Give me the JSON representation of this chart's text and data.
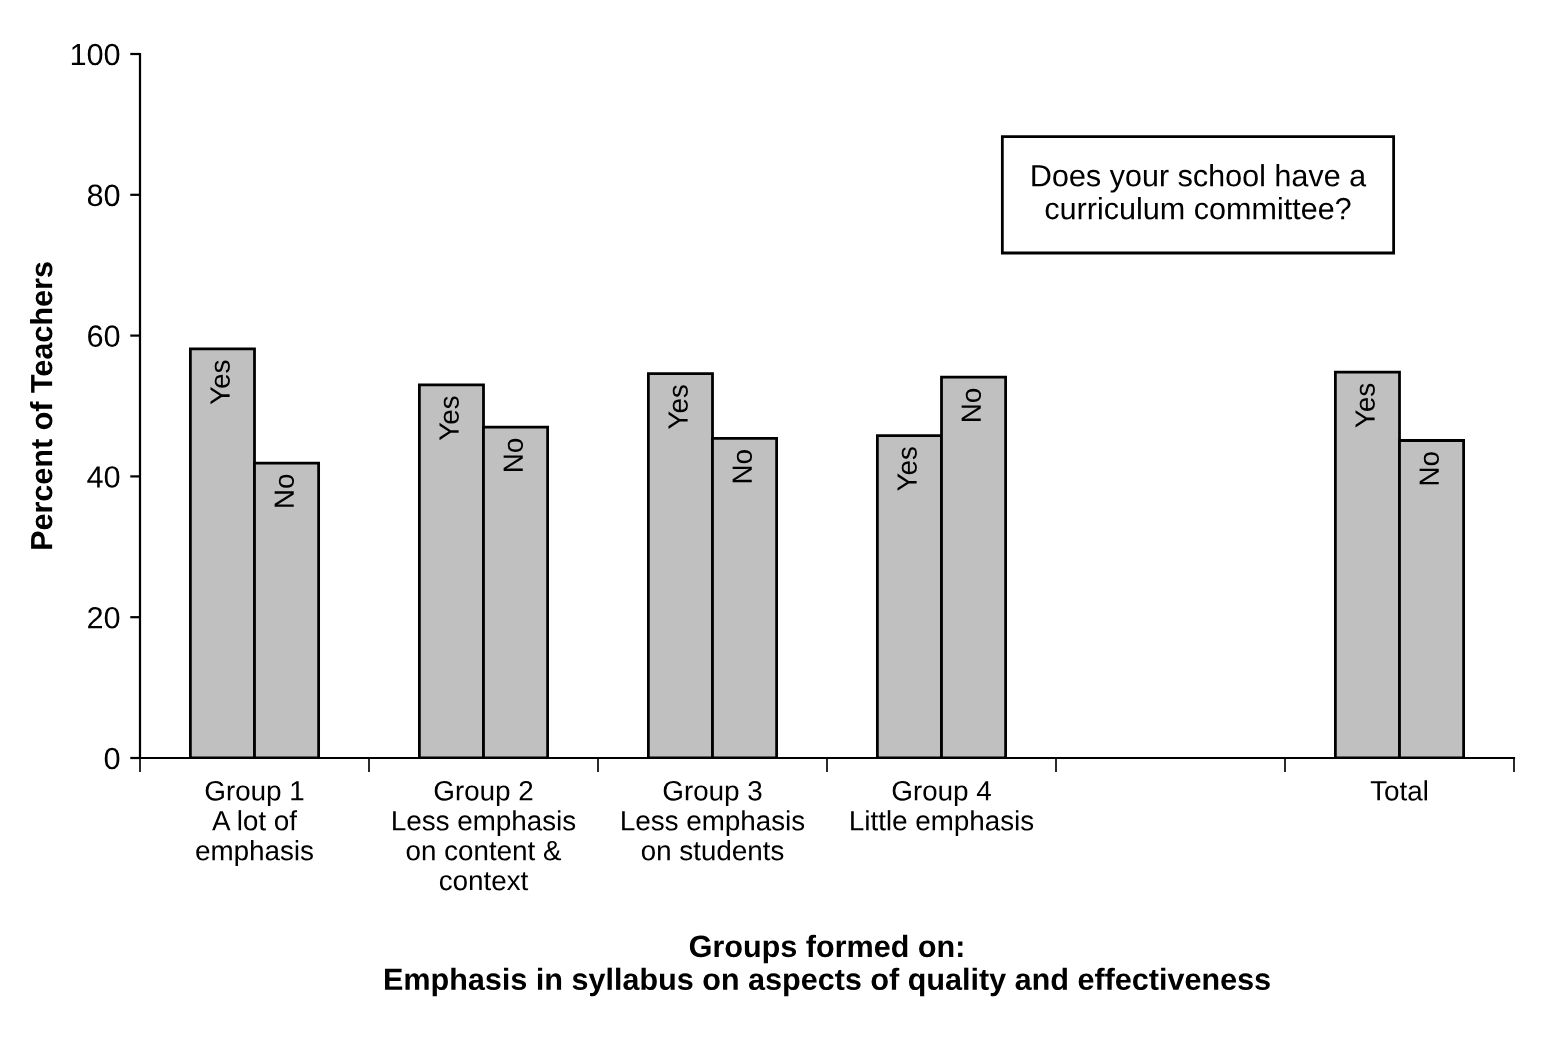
{
  "chart_data": {
    "type": "bar",
    "categories": [
      "Group 1\nA lot of\nemphasis",
      "Group 2\nLess emphasis\non content &\ncontext",
      "Group 3\nLess emphasis\non students",
      "Group 4\nLittle emphasis",
      null,
      "Total"
    ],
    "series": [
      {
        "name": "Yes",
        "color": "#c0c0c0",
        "values": [
          58.1,
          53.0,
          54.6,
          45.8,
          null,
          54.8
        ]
      },
      {
        "name": "No",
        "color": "#c0c0c0",
        "values": [
          41.9,
          47.0,
          45.4,
          54.1,
          null,
          45.1
        ]
      }
    ],
    "ylim": [
      0,
      100
    ],
    "yticks": [
      0,
      20,
      40,
      60,
      80,
      100
    ],
    "ylabel": "Percent of Teachers",
    "xlabel": "Groups formed on:\nEmphasis in syllabus on aspects of quality and effectiveness",
    "annotations": [
      "Does your school have a\ncurriculum committee?"
    ],
    "grid": false,
    "legend": false
  }
}
